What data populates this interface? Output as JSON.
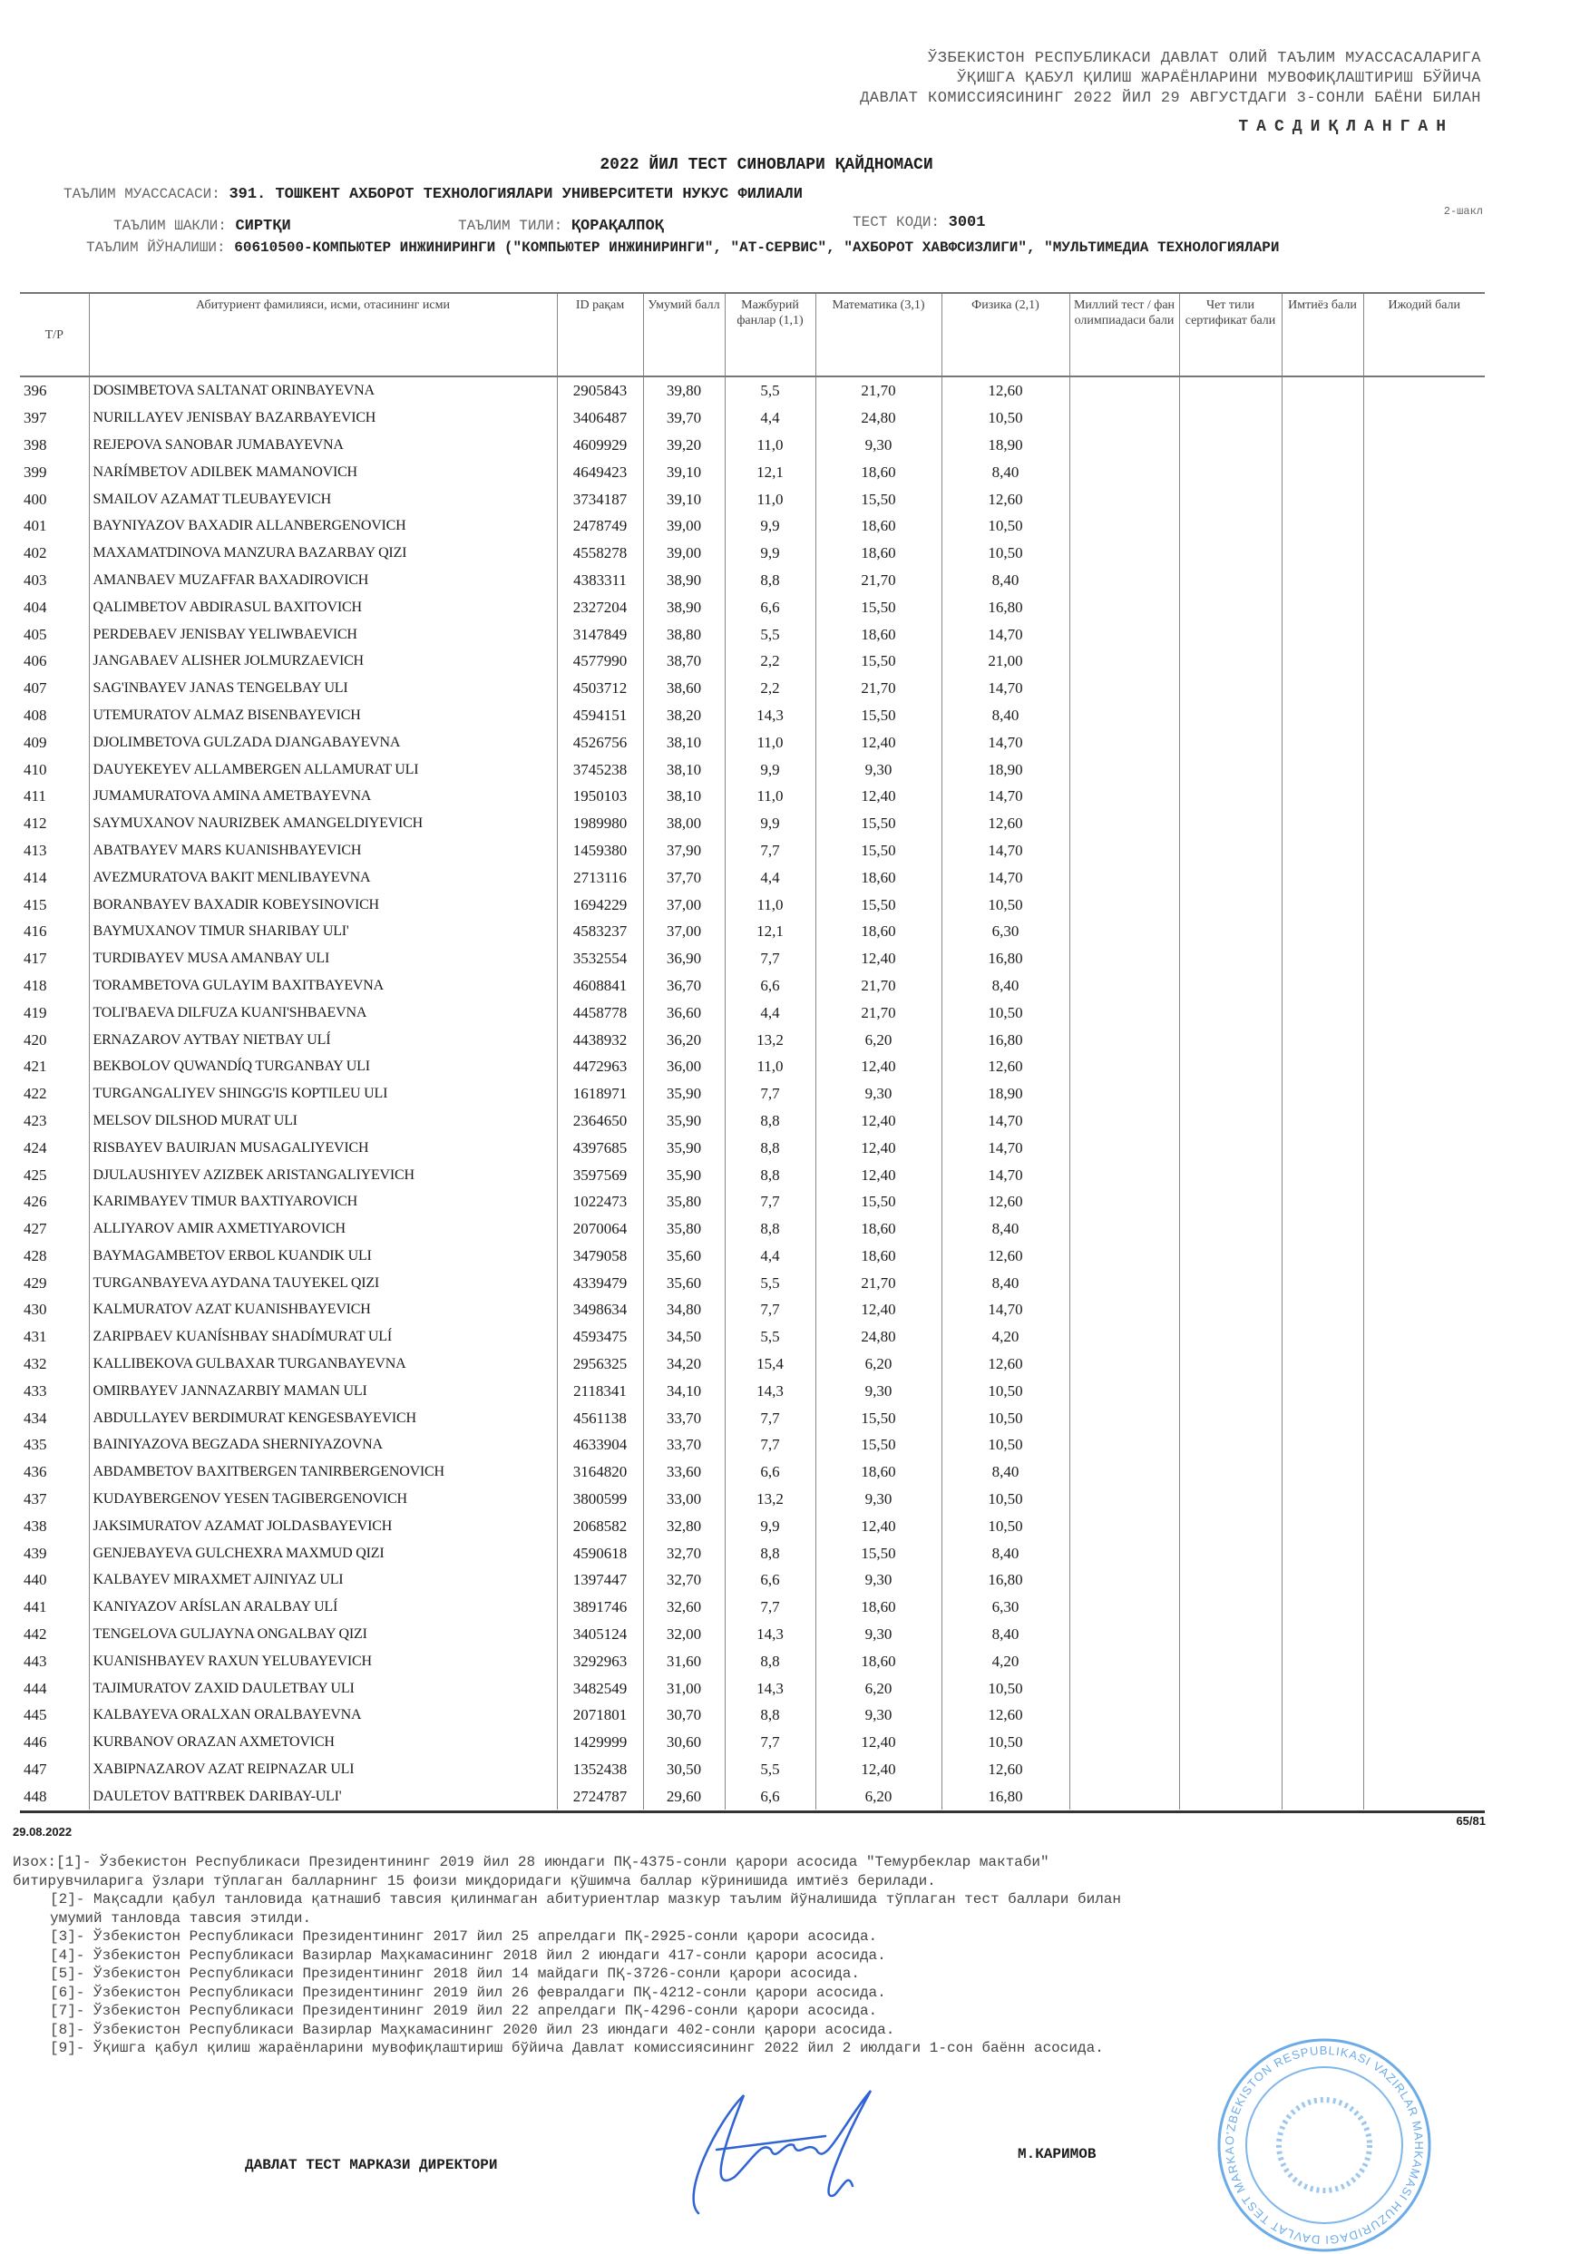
{
  "approval": {
    "lines": [
      "ЎЗБЕКИСТОН РЕСПУБЛИКАСИ ДАВЛАТ ОЛИЙ ТАЪЛИМ МУАССАСАЛАРИГА",
      "ЎҚИШГА ҚАБУЛ ҚИЛИШ ЖАРАЁНЛАРИНИ МУВОФИҚЛАШТИРИШ БЎЙИЧА",
      "ДАВЛАТ КОМИССИЯСИНИНГ 2022 ЙИЛ 29 АВГУСТДАГИ 3-СОНЛИ БАЁНИ БИЛАН"
    ],
    "approved": "ТАСДИҚЛАНГАН"
  },
  "title": "2022 ЙИЛ ТЕСТ СИНОВЛАРИ ҚАЙДНОМАСИ",
  "info": {
    "institution_label": "ТАЪЛИМ МУАССАСАСИ:",
    "institution": "391. ТОШКЕНТ АХБОРОТ ТЕХНОЛОГИЯЛАРИ УНИВЕРСИТЕТИ НУКУС ФИЛИАЛИ",
    "form_label": "ТАЪЛИМ ШАКЛИ:",
    "form": "СИРТҚИ",
    "language_label": "ТАЪЛИМ ТИЛИ:",
    "language": "ҚОРАҚАЛПОҚ",
    "test_code_label": "ТЕСТ КОДИ:",
    "test_code": "3001",
    "form_number": "2-шакл",
    "direction_label": "ТАЪЛИМ ЙЎНАЛИШИ:",
    "direction": "60610500-КОМПЬЮТЕР ИНЖИНИРИНГИ (\"КОМПЬЮТЕР ИНЖИНИРИНГИ\", \"АТ-СЕРВИС\", \"АХБОРОТ ХАВФСИЗЛИГИ\", \"МУЛЬТИМЕДИА ТЕХНОЛОГИЯЛАРИ"
  },
  "table": {
    "headers": [
      "Т/Р",
      "Абитуриент фамилияси, исми, отасининг исми",
      "ID рақам",
      "Умумий балл",
      "Мажбурий фанлар (1,1)",
      "Математика (3,1)",
      "Физика (2,1)",
      "Миллий тест / фан олимпиадаси бали",
      "Чет тили сертификат бали",
      "Имтиёз бали",
      "Ижодий бали"
    ],
    "rows": [
      [
        "396",
        "DOSIMBETOVA SALTANAT ORINBAYEVNA",
        "2905843",
        "39,80",
        "5,5",
        "21,70",
        "12,60"
      ],
      [
        "397",
        "NURILLAYEV JENISBAY BAZARBAYEVICH",
        "3406487",
        "39,70",
        "4,4",
        "24,80",
        "10,50"
      ],
      [
        "398",
        "REJEPOVA SANOBAR JUMABAYEVNA",
        "4609929",
        "39,20",
        "11,0",
        "9,30",
        "18,90"
      ],
      [
        "399",
        "NARÍMBETOV ADILBEK MAMANOVICH",
        "4649423",
        "39,10",
        "12,1",
        "18,60",
        "8,40"
      ],
      [
        "400",
        "SMAILOV AZAMAT TLEUBAYEVICH",
        "3734187",
        "39,10",
        "11,0",
        "15,50",
        "12,60"
      ],
      [
        "401",
        "BAYNIYAZOV BAXADIR ALLANBERGENOVICH",
        "2478749",
        "39,00",
        "9,9",
        "18,60",
        "10,50"
      ],
      [
        "402",
        "MAXAMATDINOVA MANZURA BAZARBAY QIZI",
        "4558278",
        "39,00",
        "9,9",
        "18,60",
        "10,50"
      ],
      [
        "403",
        "AMANBAEV MUZAFFAR BAXADIROVICH",
        "4383311",
        "38,90",
        "8,8",
        "21,70",
        "8,40"
      ],
      [
        "404",
        "QALIMBETOV ABDIRASUL BAXITOVICH",
        "2327204",
        "38,90",
        "6,6",
        "15,50",
        "16,80"
      ],
      [
        "405",
        "PERDEBAEV JENISBAY YELIWBAEVICH",
        "3147849",
        "38,80",
        "5,5",
        "18,60",
        "14,70"
      ],
      [
        "406",
        "JANGABAEV ALISHER JOLMURZAEVICH",
        "4577990",
        "38,70",
        "2,2",
        "15,50",
        "21,00"
      ],
      [
        "407",
        "SAG'INBAYEV JANAS TENGELBAY ULI",
        "4503712",
        "38,60",
        "2,2",
        "21,70",
        "14,70"
      ],
      [
        "408",
        "UTEMURATOV ALMAZ BISENBAYEVICH",
        "4594151",
        "38,20",
        "14,3",
        "15,50",
        "8,40"
      ],
      [
        "409",
        "DJOLIMBETOVA GULZADA DJANGABAYEVNA",
        "4526756",
        "38,10",
        "11,0",
        "12,40",
        "14,70"
      ],
      [
        "410",
        "DAUYEKEYEV ALLAMBERGEN ALLAMURAT ULI",
        "3745238",
        "38,10",
        "9,9",
        "9,30",
        "18,90"
      ],
      [
        "411",
        "JUMAMURATOVA AMINA AMETBAYEVNA",
        "1950103",
        "38,10",
        "11,0",
        "12,40",
        "14,70"
      ],
      [
        "412",
        "SAYMUXANOV NAURIZBEK AMANGELDIYEVICH",
        "1989980",
        "38,00",
        "9,9",
        "15,50",
        "12,60"
      ],
      [
        "413",
        "ABATBAYEV MARS KUANISHBAYEVICH",
        "1459380",
        "37,90",
        "7,7",
        "15,50",
        "14,70"
      ],
      [
        "414",
        "AVEZMURATOVA BAKIT MENLIBAYEVNA",
        "2713116",
        "37,70",
        "4,4",
        "18,60",
        "14,70"
      ],
      [
        "415",
        "BORANBAYEV BAXADIR KOBEYSINOVICH",
        "1694229",
        "37,00",
        "11,0",
        "15,50",
        "10,50"
      ],
      [
        "416",
        "BAYMUXANOV TIMUR SHARIBAY ULI'",
        "4583237",
        "37,00",
        "12,1",
        "18,60",
        "6,30"
      ],
      [
        "417",
        "TURDIBAYEV MUSA AMANBAY ULI",
        "3532554",
        "36,90",
        "7,7",
        "12,40",
        "16,80"
      ],
      [
        "418",
        "TORAMBETOVA GULAYIM BAXITBAYEVNA",
        "4608841",
        "36,70",
        "6,6",
        "21,70",
        "8,40"
      ],
      [
        "419",
        "TOLI'BAEVA DILFUZA KUANI'SHBAEVNA",
        "4458778",
        "36,60",
        "4,4",
        "21,70",
        "10,50"
      ],
      [
        "420",
        "ERNAZAROV AYTBAY NIETBAY ULÍ",
        "4438932",
        "36,20",
        "13,2",
        "6,20",
        "16,80"
      ],
      [
        "421",
        "BEKBOLOV QUWANDÍQ TURGANBAY ULI",
        "4472963",
        "36,00",
        "11,0",
        "12,40",
        "12,60"
      ],
      [
        "422",
        "TURGANGALIYEV SHINGG'IS KOPTILEU ULI",
        "1618971",
        "35,90",
        "7,7",
        "9,30",
        "18,90"
      ],
      [
        "423",
        "MELSOV DILSHOD MURAT ULI",
        "2364650",
        "35,90",
        "8,8",
        "12,40",
        "14,70"
      ],
      [
        "424",
        "RISBAYEV BAUIRJAN MUSAGALIYEVICH",
        "4397685",
        "35,90",
        "8,8",
        "12,40",
        "14,70"
      ],
      [
        "425",
        "DJULAUSHIYEV AZIZBEK ARISTANGALIYEVICH",
        "3597569",
        "35,90",
        "8,8",
        "12,40",
        "14,70"
      ],
      [
        "426",
        "KARIMBAYEV TIMUR BAXTIYAROVICH",
        "1022473",
        "35,80",
        "7,7",
        "15,50",
        "12,60"
      ],
      [
        "427",
        "ALLIYAROV AMIR AXMETIYAROVICH",
        "2070064",
        "35,80",
        "8,8",
        "18,60",
        "8,40"
      ],
      [
        "428",
        "BAYMAGAMBETOV ERBOL KUANDIK ULI",
        "3479058",
        "35,60",
        "4,4",
        "18,60",
        "12,60"
      ],
      [
        "429",
        "TURGANBAYEVA AYDANA TAUYEKEL QIZI",
        "4339479",
        "35,60",
        "5,5",
        "21,70",
        "8,40"
      ],
      [
        "430",
        "KALMURATOV AZAT KUANISHBAYEVICH",
        "3498634",
        "34,80",
        "7,7",
        "12,40",
        "14,70"
      ],
      [
        "431",
        "ZARIPBAEV KUANÍSHBAY SHADÍMURAT ULÍ",
        "4593475",
        "34,50",
        "5,5",
        "24,80",
        "4,20"
      ],
      [
        "432",
        "KALLIBEKOVA GULBAXAR TURGANBAYEVNA",
        "2956325",
        "34,20",
        "15,4",
        "6,20",
        "12,60"
      ],
      [
        "433",
        "OMIRBAYEV JANNAZARBIY MAMAN ULI",
        "2118341",
        "34,10",
        "14,3",
        "9,30",
        "10,50"
      ],
      [
        "434",
        "ABDULLAYEV BERDIMURAT KENGESBAYEVICH",
        "4561138",
        "33,70",
        "7,7",
        "15,50",
        "10,50"
      ],
      [
        "435",
        "BAINIYAZOVA BEGZADA SHERNIYAZOVNA",
        "4633904",
        "33,70",
        "7,7",
        "15,50",
        "10,50"
      ],
      [
        "436",
        "ABDAMBETOV BAXITBERGEN TANIRBERGENOVICH",
        "3164820",
        "33,60",
        "6,6",
        "18,60",
        "8,40"
      ],
      [
        "437",
        "KUDAYBERGENOV YESEN TAGIBERGENOVICH",
        "3800599",
        "33,00",
        "13,2",
        "9,30",
        "10,50"
      ],
      [
        "438",
        "JAKSIMURATOV AZAMAT JOLDASBAYEVICH",
        "2068582",
        "32,80",
        "9,9",
        "12,40",
        "10,50"
      ],
      [
        "439",
        "GENJEBAYEVA GULCHEXRA MAXMUD QIZI",
        "4590618",
        "32,70",
        "8,8",
        "15,50",
        "8,40"
      ],
      [
        "440",
        "KALBAYEV MIRAXMET AJINIYAZ ULI",
        "1397447",
        "32,70",
        "6,6",
        "9,30",
        "16,80"
      ],
      [
        "441",
        "KANIYAZOV ARÍSLAN ARALBAY ULÍ",
        "3891746",
        "32,60",
        "7,7",
        "18,60",
        "6,30"
      ],
      [
        "442",
        "TENGELOVA GULJAYNA ONGALBAY QIZI",
        "3405124",
        "32,00",
        "14,3",
        "9,30",
        "8,40"
      ],
      [
        "443",
        "KUANISHBAYEV RAXUN YELUBAYEVICH",
        "3292963",
        "31,60",
        "8,8",
        "18,60",
        "4,20"
      ],
      [
        "444",
        "TAJIMURATOV ZAXID DAULETBAY ULI",
        "3482549",
        "31,00",
        "14,3",
        "6,20",
        "10,50"
      ],
      [
        "445",
        "KALBAYEVA ORALXAN ORALBAYEVNA",
        "2071801",
        "30,70",
        "8,8",
        "9,30",
        "12,60"
      ],
      [
        "446",
        "KURBANOV ORAZAN AXMETOVICH",
        "1429999",
        "30,60",
        "7,7",
        "12,40",
        "10,50"
      ],
      [
        "447",
        "XABIPNAZAROV AZAT REIPNAZAR ULI",
        "1352438",
        "30,50",
        "5,5",
        "12,40",
        "12,60"
      ],
      [
        "448",
        "DAULETOV BATI'RBEK DARIBAY-ULI'",
        "2724787",
        "29,60",
        "6,6",
        "6,20",
        "16,80"
      ]
    ]
  },
  "footer": {
    "page": "65/81",
    "date": "29.08.2022",
    "notes": [
      "Изох:[1]- Ўзбекистон Республикаси Президентининг 2019 йил 28 июндаги ПҚ-4375-сонли қарори асосида \"Темурбеклар мактаби\"",
      "битирувчиларига ўзлари тўплаган балларнинг 15 фоизи миқдоридаги қўшимча баллар кўринишида имтиёз берилади.",
      "[2]- Мақсадли қабул танловида қатнашиб тавсия қилинмаган абитуриентлар мазкур таълим йўналишида тўплаган тест баллари билан",
      "умумий танловда тавсия этилди.",
      "[3]- Ўзбекистон Республикаси Президентининг 2017 йил 25 апрелдаги ПҚ-2925-сонли қарори асосида.",
      "[4]- Ўзбекистон Республикаси Вазирлар Маҳкамасининг 2018 йил 2 июндаги 417-сонли қарори асосида.",
      "[5]- Ўзбекистон Республикаси Президентининг 2018 йил 14 майдаги ПҚ-3726-сонли қарори асосида.",
      "[6]- Ўзбекистон Республикаси Президентининг 2019 йил 26 февралдаги ПҚ-4212-сонли қарори асосида.",
      "[7]- Ўзбекистон Республикаси Президентининг 2019 йил 22 апрелдаги ПҚ-4296-сонли қарори асосида.",
      "[8]- Ўзбекистон Республикаси Вазирлар Маҳкамасининг 2020 йил 23 июндаги 402-сонли қарори асосида.",
      "[9]- Ўқишга қабул қилиш жараёнларини мувофиқлаштириш бўйича Давлат комиссиясининг 2022 йил 2 июлдаги 1-сон баённ асосида."
    ],
    "director_title": "ДАВЛАТ ТЕСТ МАРКАЗИ ДИРЕКТОРИ",
    "director_name": "М.КАРИМОВ",
    "stamp_text": "O'ZBEKISTON RESPUBLIKASI VAZIRLAR MAHKAMASI HUZURIDAGI DAVLAT TEST MARKAZI"
  },
  "colors": {
    "ink": "#1c1c1c",
    "stamp": "#3a8fe0",
    "signature": "#2f63d6"
  }
}
